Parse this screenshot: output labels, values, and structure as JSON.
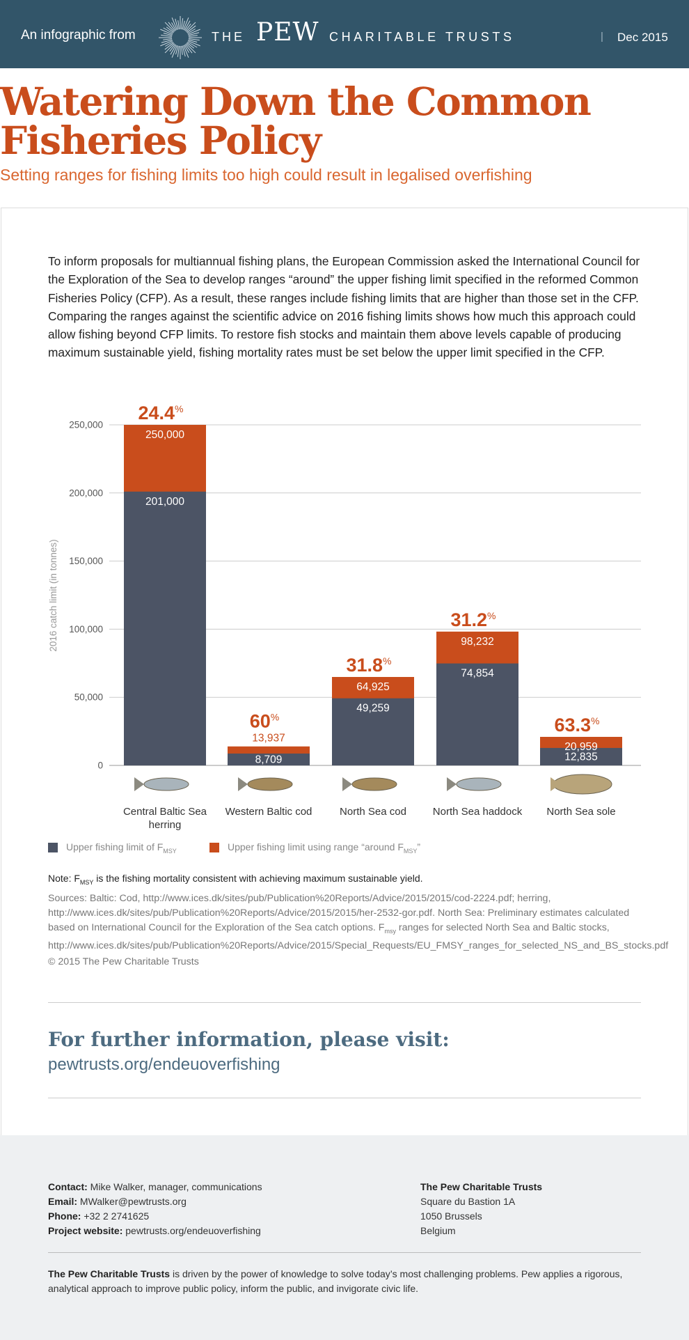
{
  "header": {
    "intro": "An infographic from",
    "logo_the": "THE",
    "logo_pew": "PEW",
    "logo_rest": "CHARITABLE TRUSTS",
    "date": "Dec 2015"
  },
  "title": "Watering Down the Common Fisheries Policy",
  "subtitle": "Setting ranges for fishing limits too high could result in legalised overfishing",
  "intro": "To inform proposals for multiannual fishing plans, the European Commission asked the International Council for the Exploration of the Sea to develop ranges “around” the upper fishing limit specified in the reformed Common Fisheries Policy (CFP). As a result, these ranges include fishing limits that are higher than those set in the CFP. Comparing the ranges against the scientific advice on 2016 fishing limits shows how much this approach could allow fishing beyond CFP limits. To restore fish stocks and maintain them above levels capable of producing maximum sustainable yield, fishing mortality rates must be set below the upper limit specified in the CFP.",
  "chart_data": {
    "type": "bar",
    "ylabel": "2016 catch limit (in tonnes)",
    "categories": [
      "Central Baltic Sea herring",
      "Western Baltic cod",
      "North Sea cod",
      "North Sea haddock",
      "North Sea sole"
    ],
    "series": [
      {
        "name": "Upper fishing limit of F",
        "name_sub": "MSY",
        "color": "#4c5465",
        "values": [
          201000,
          8709,
          49259,
          74854,
          12835
        ],
        "value_labels": [
          "201,000",
          "8,709",
          "49,259",
          "74,854",
          "12,835"
        ]
      },
      {
        "name": "Upper fishing limit using range “around F",
        "name_sub": "MSY",
        "name_suffix": "”",
        "color": "#c94d1c",
        "values": [
          250000,
          13937,
          64925,
          98232,
          20959
        ],
        "value_labels": [
          "250,000",
          "13,937",
          "64,925",
          "98,232",
          "20,959"
        ]
      }
    ],
    "percent_changes": [
      24.4,
      60,
      31.8,
      31.2,
      63.3
    ],
    "percent_unit": "%",
    "ylim": [
      0,
      250000
    ],
    "yticks": [
      0,
      {
        "value": 50000,
        "label": "50,000"
      },
      {
        "value": 100000,
        "label": "100,000"
      },
      {
        "value": 150000,
        "label": "150,000"
      },
      {
        "value": 200000,
        "label": "200,000"
      },
      {
        "value": 250000,
        "label": "250,000"
      }
    ],
    "grid": true
  },
  "note": [
    "Note: F",
    "MSY",
    " is the fishing mortality consistent with achieving maximum sustainable yield."
  ],
  "sources": [
    "Sources: Baltic: Cod, http://www.ices.dk/sites/pub/Publication%20Reports/Advice/2015/2015/cod-2224.pdf; herring, http://www.ices.dk/sites/pub/Publication%20Reports/Advice/2015/2015/her-2532-gor.pdf. North Sea: Preliminary estimates calculated based on International Council for the Exploration of the Sea catch options. F",
    "msy",
    " ranges for selected North Sea and Baltic stocks, http://www.ices.dk/sites/pub/Publication%20Reports/Advice/2015/Special_Requests/EU_FMSY_ranges_for_selected_NS_and_BS_stocks.pdf"
  ],
  "copyright": "© 2015 The Pew Charitable Trusts",
  "further": {
    "heading": "For further information, please visit:",
    "link": "pewtrusts.org/endeuoverfishing"
  },
  "contact": [
    {
      "label": "Contact:",
      "value": "Mike Walker, manager, communications"
    },
    {
      "label": "Email:",
      "value": "MWalker@pewtrusts.org"
    },
    {
      "label": "Phone:",
      "value": "+32 2 2741625"
    },
    {
      "label": "Project website:",
      "value": "pewtrusts.org/endeuoverfishing"
    }
  ],
  "address": {
    "name": "The Pew Charitable Trusts",
    "lines": [
      "Square du Bastion 1A",
      "1050 Brussels",
      "Belgium"
    ]
  },
  "about": {
    "name": "The Pew Charitable Trusts",
    "text": " is driven by the power of knowledge to solve today’s most challenging problems. Pew applies a rigorous, analytical approach to improve public policy, inform the public, and invigorate civic life."
  }
}
